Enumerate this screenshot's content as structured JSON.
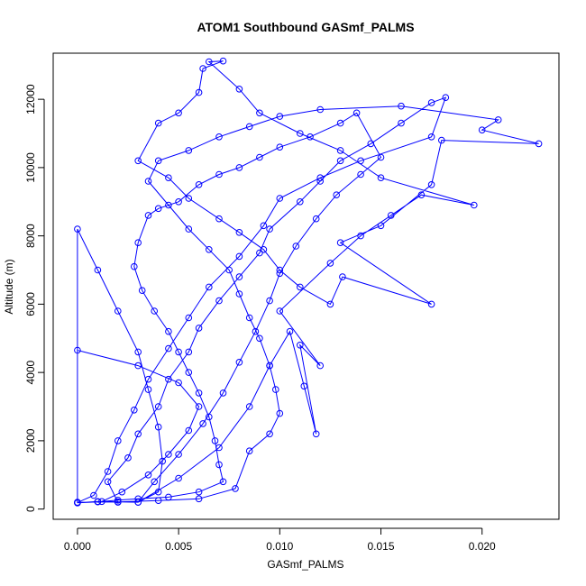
{
  "chart_data": {
    "type": "line",
    "title": "ATOM1 Southbound GASmf_PALMS",
    "xlabel": "GASmf_PALMS",
    "ylabel": "Altitude (m)",
    "xlim": [
      -0.0012,
      0.0238
    ],
    "ylim": [
      -300,
      13350
    ],
    "x_ticks": [
      0.0,
      0.005,
      0.01,
      0.015,
      0.02
    ],
    "x_tick_labels": [
      "0.000",
      "0.005",
      "0.010",
      "0.015",
      "0.020"
    ],
    "y_ticks": [
      0,
      2000,
      4000,
      6000,
      8000,
      10000,
      12000
    ],
    "y_tick_labels": [
      "0",
      "2000",
      "4000",
      "6000",
      "8000",
      "10000",
      "12000"
    ],
    "grid": false,
    "legend": "none",
    "series_color": "#0000ff",
    "marker": "open-circle",
    "series": [
      {
        "values": [
          [
            0.0,
            180
          ],
          [
            0.001,
            220
          ],
          [
            0.002,
            200
          ],
          [
            0.0015,
            800
          ],
          [
            0.0025,
            1500
          ],
          [
            0.003,
            2200
          ],
          [
            0.004,
            3000
          ],
          [
            0.0045,
            3800
          ],
          [
            0.0055,
            4600
          ],
          [
            0.006,
            5300
          ],
          [
            0.007,
            6100
          ],
          [
            0.008,
            6800
          ],
          [
            0.009,
            7500
          ],
          [
            0.0095,
            8200
          ],
          [
            0.011,
            9000
          ],
          [
            0.012,
            9600
          ],
          [
            0.013,
            10200
          ],
          [
            0.0145,
            10700
          ],
          [
            0.016,
            11300
          ],
          [
            0.0175,
            11900
          ],
          [
            0.0182,
            12050
          ],
          [
            0.0175,
            10900
          ],
          [
            0.014,
            10200
          ],
          [
            0.012,
            9700
          ],
          [
            0.01,
            9100
          ],
          [
            0.0092,
            8300
          ],
          [
            0.008,
            7400
          ],
          [
            0.0065,
            6500
          ],
          [
            0.0055,
            5600
          ],
          [
            0.0045,
            4700
          ],
          [
            0.0035,
            3800
          ],
          [
            0.0028,
            2900
          ],
          [
            0.002,
            2000
          ],
          [
            0.0015,
            1100
          ],
          [
            0.0008,
            400
          ],
          [
            0.0,
            190
          ],
          [
            0.0,
            4650
          ],
          [
            0.003,
            4200
          ],
          [
            0.005,
            3700
          ],
          [
            0.006,
            3000
          ],
          [
            0.0055,
            2300
          ],
          [
            0.0045,
            1600
          ],
          [
            0.0035,
            1000
          ],
          [
            0.0022,
            500
          ],
          [
            0.0012,
            220
          ],
          [
            0.003,
            200
          ],
          [
            0.005,
            900
          ],
          [
            0.007,
            1800
          ],
          [
            0.0085,
            3000
          ],
          [
            0.0095,
            4200
          ],
          [
            0.0105,
            5200
          ],
          [
            0.0112,
            3600
          ],
          [
            0.0118,
            2200
          ],
          [
            0.011,
            4800
          ],
          [
            0.012,
            4200
          ],
          [
            0.01,
            5800
          ],
          [
            0.0125,
            7200
          ],
          [
            0.014,
            8000
          ],
          [
            0.0155,
            8600
          ],
          [
            0.017,
            9200
          ],
          [
            0.0196,
            8900
          ],
          [
            0.015,
            9700
          ],
          [
            0.013,
            10500
          ],
          [
            0.011,
            11000
          ],
          [
            0.009,
            11600
          ],
          [
            0.008,
            12300
          ],
          [
            0.0065,
            13100
          ],
          [
            0.0072,
            13120
          ],
          [
            0.0062,
            12900
          ],
          [
            0.006,
            12200
          ],
          [
            0.005,
            11600
          ],
          [
            0.004,
            11300
          ],
          [
            0.003,
            10200
          ],
          [
            0.0045,
            9700
          ],
          [
            0.0055,
            9100
          ],
          [
            0.007,
            8500
          ],
          [
            0.008,
            8100
          ],
          [
            0.0092,
            7600
          ],
          [
            0.01,
            7000
          ],
          [
            0.011,
            6500
          ],
          [
            0.0125,
            6000
          ],
          [
            0.0131,
            6800
          ],
          [
            0.0175,
            6000
          ],
          [
            0.013,
            7800
          ],
          [
            0.015,
            8300
          ],
          [
            0.0175,
            9500
          ],
          [
            0.018,
            10800
          ],
          [
            0.0228,
            10700
          ],
          [
            0.02,
            11100
          ],
          [
            0.0208,
            11400
          ],
          [
            0.016,
            11800
          ],
          [
            0.012,
            11700
          ],
          [
            0.01,
            11500
          ],
          [
            0.0085,
            11200
          ],
          [
            0.007,
            10900
          ],
          [
            0.0055,
            10500
          ],
          [
            0.004,
            10200
          ],
          [
            0.0035,
            9600
          ],
          [
            0.0045,
            8900
          ],
          [
            0.0055,
            8200
          ],
          [
            0.0065,
            7600
          ],
          [
            0.0075,
            7000
          ],
          [
            0.008,
            6300
          ],
          [
            0.0085,
            5600
          ],
          [
            0.009,
            5000
          ],
          [
            0.0095,
            4200
          ],
          [
            0.0098,
            3500
          ],
          [
            0.01,
            2800
          ],
          [
            0.0095,
            2200
          ],
          [
            0.0085,
            1700
          ],
          [
            0.0078,
            600
          ],
          [
            0.006,
            300
          ],
          [
            0.004,
            250
          ],
          [
            0.002,
            210
          ],
          [
            0.0,
            200
          ],
          [
            0.0,
            8200
          ],
          [
            0.001,
            7000
          ],
          [
            0.002,
            5800
          ],
          [
            0.003,
            4600
          ],
          [
            0.0035,
            3500
          ],
          [
            0.004,
            2400
          ],
          [
            0.0042,
            1400
          ],
          [
            0.004,
            500
          ],
          [
            0.003,
            200
          ],
          [
            0.0038,
            800
          ],
          [
            0.005,
            1600
          ],
          [
            0.0062,
            2500
          ],
          [
            0.0072,
            3400
          ],
          [
            0.008,
            4300
          ],
          [
            0.0088,
            5200
          ],
          [
            0.0095,
            6100
          ],
          [
            0.01,
            6900
          ],
          [
            0.0108,
            7700
          ],
          [
            0.0118,
            8500
          ],
          [
            0.0128,
            9200
          ],
          [
            0.014,
            9800
          ],
          [
            0.015,
            10300
          ],
          [
            0.0138,
            11600
          ],
          [
            0.013,
            11300
          ],
          [
            0.0115,
            10900
          ],
          [
            0.01,
            10600
          ],
          [
            0.009,
            10300
          ],
          [
            0.008,
            10000
          ],
          [
            0.007,
            9800
          ],
          [
            0.006,
            9500
          ],
          [
            0.005,
            9000
          ],
          [
            0.004,
            8800
          ],
          [
            0.0035,
            8600
          ],
          [
            0.003,
            7800
          ],
          [
            0.0028,
            7100
          ],
          [
            0.0032,
            6400
          ],
          [
            0.0038,
            5800
          ],
          [
            0.0045,
            5200
          ],
          [
            0.005,
            4600
          ],
          [
            0.0055,
            4000
          ],
          [
            0.006,
            3400
          ],
          [
            0.0065,
            2700
          ],
          [
            0.0068,
            2000
          ],
          [
            0.007,
            1300
          ],
          [
            0.0072,
            800
          ],
          [
            0.006,
            500
          ],
          [
            0.0045,
            350
          ],
          [
            0.003,
            300
          ],
          [
            0.002,
            260
          ],
          [
            0.001,
            210
          ],
          [
            0.0,
            180
          ]
        ]
      }
    ]
  }
}
